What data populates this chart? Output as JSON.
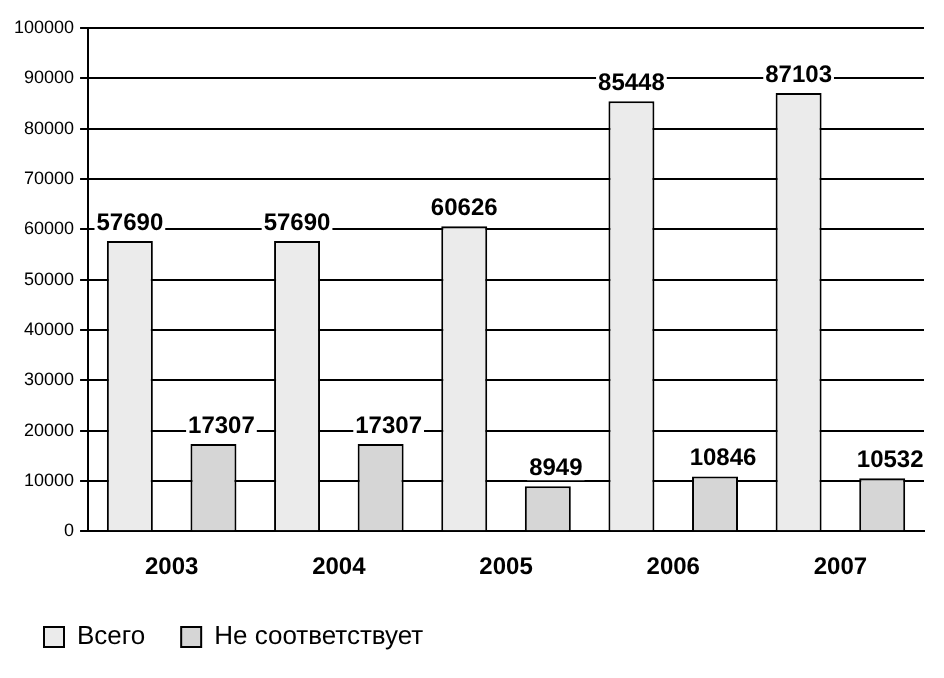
{
  "chart_data": {
    "type": "bar",
    "categories": [
      "2003",
      "2004",
      "2005",
      "2006",
      "2007"
    ],
    "series": [
      {
        "name": "Всего",
        "color": "#ebebeb",
        "values": [
          57690,
          57690,
          60626,
          85448,
          87103
        ]
      },
      {
        "name": "Не соответствует",
        "color": "#d6d6d6",
        "values": [
          17307,
          17307,
          8949,
          10846,
          10532
        ]
      }
    ],
    "ylim": [
      0,
      100000
    ],
    "yticks": [
      0,
      10000,
      20000,
      30000,
      40000,
      50000,
      60000,
      70000,
      80000,
      90000,
      100000
    ],
    "grid": "y",
    "legend": "bottom",
    "data_labels": true
  }
}
